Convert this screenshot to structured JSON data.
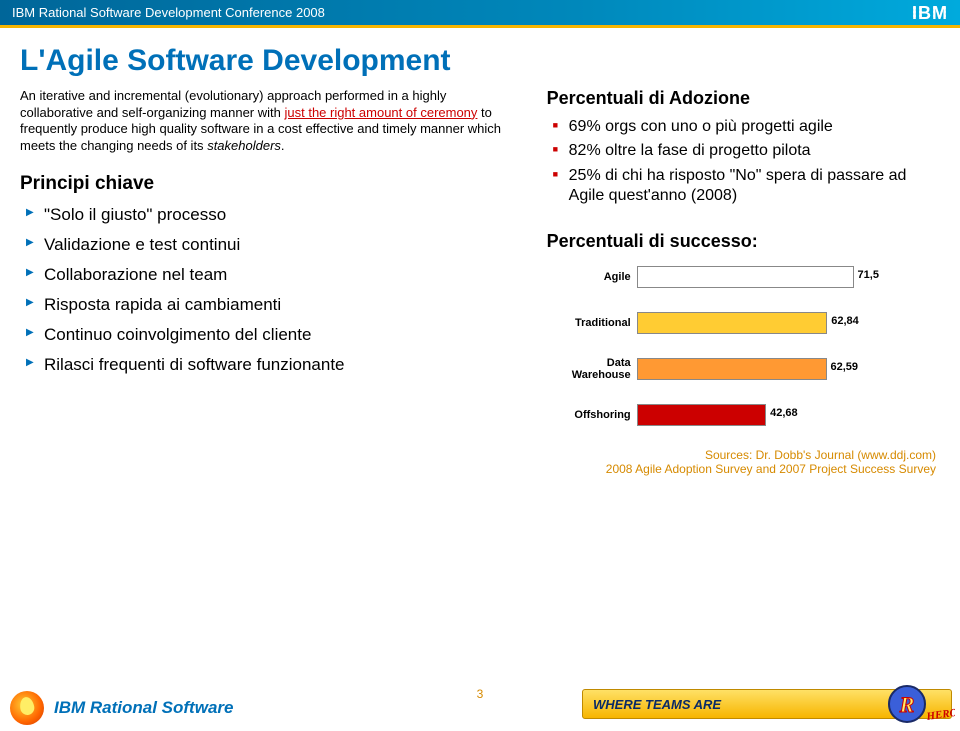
{
  "header": {
    "conference": "IBM Rational Software Development Conference 2008",
    "logo_text": "IBM"
  },
  "title": {
    "text": "L'Agile Software Development",
    "color": "#0070b8",
    "fontsize": 30,
    "weight": "bold"
  },
  "intro": {
    "fontsize": 13,
    "color": "#000000",
    "text_before": "An iterative and incremental (evolutionary) approach performed in a highly collaborative and self-organizing manner with ",
    "emphasis": "just the right amount of ceremony",
    "emphasis_color": "#cc0000",
    "text_after": " to frequently produce high quality software in a cost effective and timely manner which meets the changing needs of its ",
    "stakeholders": "stakeholders",
    "period": "."
  },
  "principi": {
    "heading": "Principi chiave",
    "heading_fontsize": 19,
    "heading_weight": "bold",
    "item_fontsize": 17,
    "bullet_color": "#0070b8",
    "items": [
      "\"Solo il giusto\" processo",
      "Validazione e test continui",
      "Collaborazione nel team",
      "Risposta rapida ai cambiamenti",
      "Continuo coinvolgimento del cliente",
      "Rilasci frequenti di software funzionante"
    ]
  },
  "adoption": {
    "heading": "Percentuali di Adozione",
    "heading_fontsize": 18,
    "heading_weight": "bold",
    "item_fontsize": 16,
    "bullet_color": "#cc0000",
    "items": [
      "69% orgs con uno o più progetti agile",
      "82% oltre la fase di progetto pilota",
      "25% di chi ha risposto \"No\" spera di passare ad Agile quest'anno (2008)"
    ]
  },
  "success": {
    "heading": "Percentuali di successo:",
    "heading_fontsize": 18,
    "heading_weight": "bold"
  },
  "chart": {
    "type": "bar-horizontal",
    "xlim": [
      0,
      100
    ],
    "label_fontsize": 11,
    "label_weight": "bold",
    "value_fontsize": 11,
    "value_weight": "bold",
    "bar_border": "#888888",
    "bars": [
      {
        "label": "Agile",
        "value": 71.5,
        "display": "71,5",
        "color": "#ffffff"
      },
      {
        "label": "Traditional",
        "value": 62.84,
        "display": "62,84",
        "color": "#ffcc33"
      },
      {
        "label": "Data Warehouse",
        "value": 62.59,
        "display": "62,59",
        "color": "#ff9933"
      },
      {
        "label": "Offshoring",
        "value": 42.68,
        "display": "42,68",
        "color": "#cc0000"
      }
    ]
  },
  "sources": {
    "line1": "Sources: Dr. Dobb's Journal (www.ddj.com)",
    "line2": "2008 Agile Adoption Survey and 2007 Project Success Survey",
    "color": "#d68a00",
    "fontsize": 12
  },
  "footer": {
    "title": "IBM Rational Software",
    "title_color": "#0070b8",
    "title_fontsize": 17,
    "title_weight": "bold",
    "page": "3",
    "page_color": "#d68a00",
    "page_fontsize": 12,
    "banner_text": "WHERE TEAMS ARE",
    "banner_color": "#0a2a66",
    "banner_fontsize": 13,
    "heroes_text": "HEROES"
  }
}
